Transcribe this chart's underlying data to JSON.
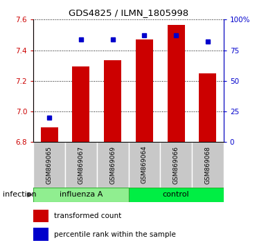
{
  "title": "GDS4825 / ILMN_1805998",
  "samples": [
    "GSM869065",
    "GSM869067",
    "GSM869069",
    "GSM869064",
    "GSM869066",
    "GSM869068"
  ],
  "red_values": [
    6.895,
    7.295,
    7.335,
    7.47,
    7.565,
    7.25
  ],
  "blue_values": [
    20,
    84,
    84,
    87,
    87,
    82
  ],
  "y_min": 6.8,
  "y_max": 7.6,
  "y_ticks": [
    6.8,
    7.0,
    7.2,
    7.4,
    7.6
  ],
  "y2_ticks": [
    0,
    25,
    50,
    75,
    100
  ],
  "y2_labels": [
    "0",
    "25",
    "50",
    "75",
    "100%"
  ],
  "influenza_color": "#90EE90",
  "control_color": "#00EE44",
  "bar_color": "#CC0000",
  "dot_color": "#0000CC",
  "legend_items": [
    "transformed count",
    "percentile rank within the sample"
  ],
  "bar_width": 0.55,
  "base_value": 6.8
}
